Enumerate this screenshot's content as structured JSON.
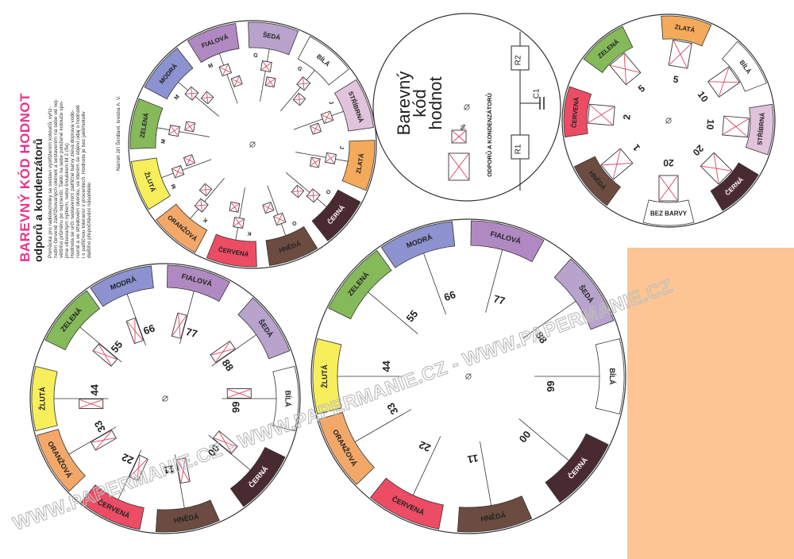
{
  "title": "BAREVNÝ KÓD HODNOT",
  "subtitle": "odporů a kondenzátorů",
  "description": [
    "Pomůcka pro radiotechniky se sestaví vystřižením kotoučů, vyříz-",
    "nutím červeně zakřížkovaných okének a sestavením na sebe od nej-",
    "většího průměru po nejmenší. Takto na sebe položené kotouče spo-",
    "jíme vlisovaným nýtkem, nebo šroubkem M 2 (fix)",
    "Hodnota se určí nastavením patřičné barvy zleva doprava vodo-",
    "rovně a ve středovém okénku, ve kterém se objeví údaj o hodnotě",
    "i s patřičnou tolerancí v procentech. Hodnota je bez jakéhokoliv",
    "dalšího přepočítávání násobitele."
  ],
  "credit": "Námět Jiří Škrdlant, kresba A. V.",
  "colors": {
    "fialova": "#b189c2",
    "seda": "#b8a3cd",
    "bila": "#ffffff",
    "stribrna": "#e1c3dc",
    "zlata": "#f4aa5b",
    "cerna": "#4a2a31",
    "hneda": "#6c4c40",
    "cervena": "#ec4d64",
    "oranzova": "#f3a86a",
    "zluta": "#f7ee5c",
    "zelena": "#86b95a",
    "modra": "#8d93d0",
    "peach": "#fcc593",
    "pink": "#e8348c",
    "watermark": "#bfbfbf"
  },
  "disc1": {
    "labels": [
      "ŠEDÁ",
      "BÍLÁ",
      "STŘÍBRNÁ",
      "ZLATÁ",
      "ČERNÁ",
      "HNĚDÁ",
      "ČERVENÁ",
      "ORANŽOVÁ",
      "ŽLUTÁ",
      "ZELENÁ",
      "MODRÁ",
      "FIALOVÁ"
    ],
    "letters": [
      "G",
      "G",
      "J",
      "J",
      "O",
      "O",
      "K",
      "K",
      "M",
      "M",
      "M",
      "M"
    ]
  },
  "disc2": {
    "labels": [
      "ZLATÁ",
      "BÍLÁ",
      "STŘÍBRNÁ",
      "ČERNÁ",
      "BEZ BARVY",
      "HNĚDÁ",
      "ČERVENÁ",
      "ZELENÁ"
    ],
    "percents": [
      "5",
      "10",
      "10",
      "20",
      "20",
      "1",
      "2",
      "5"
    ]
  },
  "disc3": {
    "labels": [
      "MODRÁ",
      "FIALOVÁ",
      "ŠEDÁ",
      "BÍLÁ",
      "ČERNÁ",
      "HNĚDÁ",
      "ČERVENÁ",
      "ORANŽOVÁ",
      "ŽLUTÁ",
      "ZELENÁ"
    ],
    "values": [
      "66",
      "77",
      "88",
      "66",
      "00",
      "11",
      "22",
      "33",
      "44",
      "55"
    ]
  },
  "disc4": {
    "labels": [
      "MODRÁ",
      "FIALOVÁ",
      "ŠEDÁ",
      "BÍLÁ",
      "ČERNÁ",
      "HNĚDÁ",
      "ČERVENÁ",
      "ORANŽOVÁ",
      "ŽLUTÁ",
      "ZELENÁ"
    ],
    "values": [
      "66",
      "77",
      "88",
      "66",
      "00",
      "11",
      "22",
      "33",
      "44",
      "55"
    ]
  },
  "disc5": {
    "title_lines": [
      "Barevný",
      "kód",
      "hodnot"
    ],
    "subtitle": "ODPORŮ A KONDENZÁTORŮ",
    "percent": "%",
    "r1": "R1",
    "r2": "R2",
    "c1": "C1"
  },
  "watermark": "WWW.PAPERMANIE.CZ - WWW.PAPERMANIE.CZ - WWW.PAPERMANIE.CZ"
}
